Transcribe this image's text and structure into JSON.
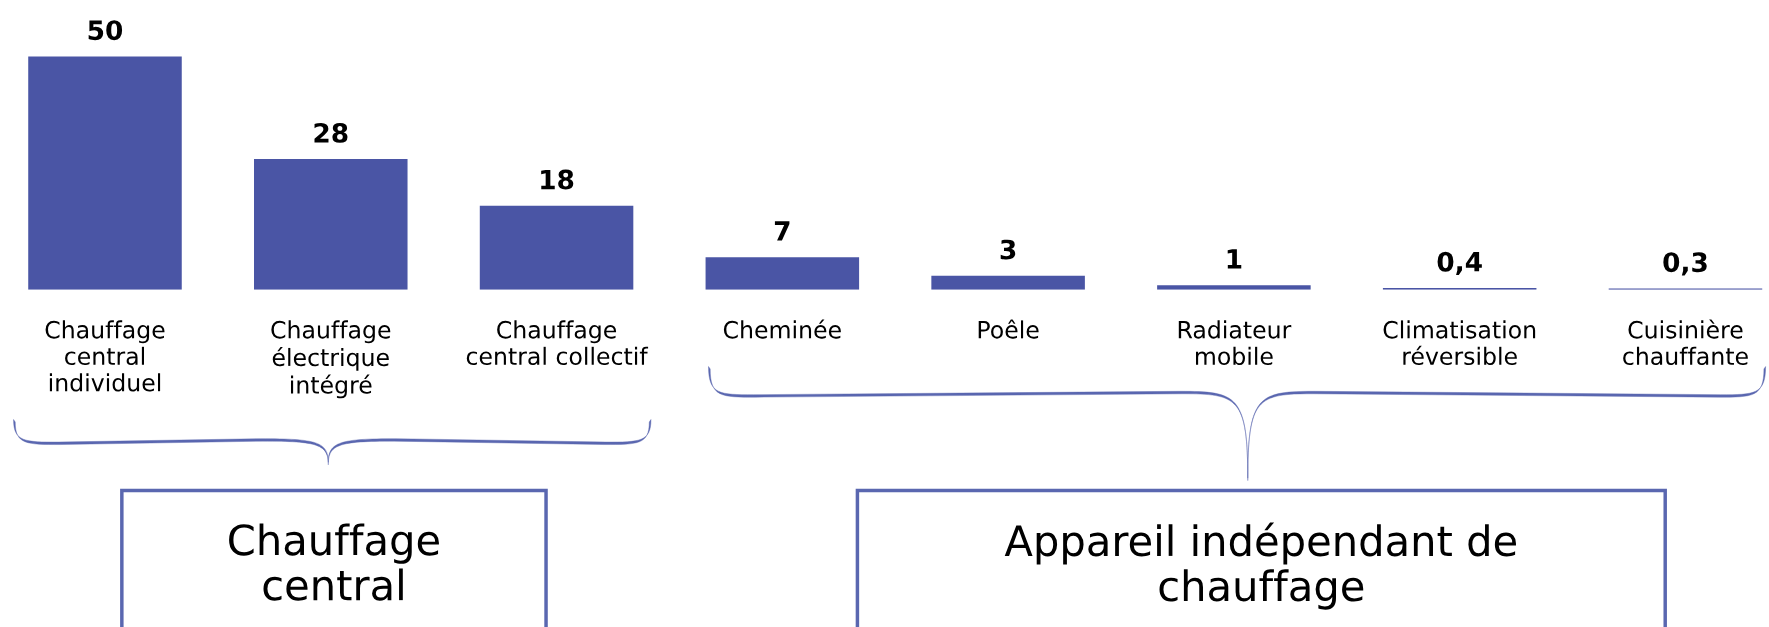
{
  "chart_data": {
    "type": "bar",
    "categories": [
      "Chauffage\ncentral\nindividuel",
      "Chauffage\nélectrique\nintégré",
      "Chauffage\ncentral collectif",
      "Cheminée",
      "Poêle",
      "Radiateur\nmobile",
      "Climatisation\nréversible",
      "Cuisinière\nchauffante"
    ],
    "values": [
      50,
      28,
      18,
      7,
      3,
      1,
      0.4,
      0.3
    ],
    "value_labels": [
      "50",
      "28",
      "18",
      "7",
      "3",
      "1",
      "0,4",
      "0,3"
    ],
    "color": "#4a55a5",
    "annotations": [
      "Chauffage\ncentral",
      "Appareil indépendant de\nchauffage"
    ]
  }
}
